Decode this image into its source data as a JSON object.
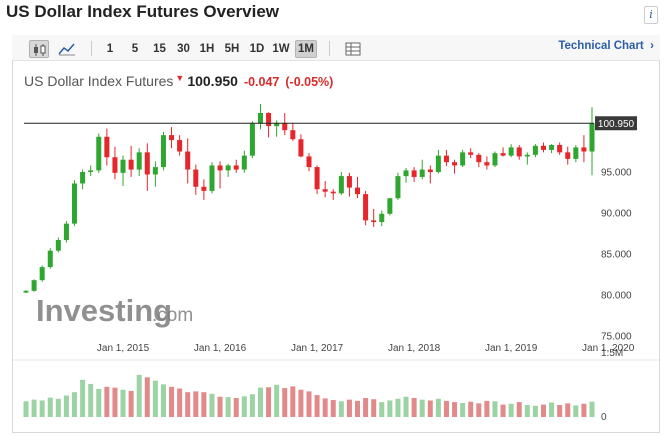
{
  "page": {
    "title": "US Dollar Index Futures Overview"
  },
  "toolbar": {
    "timeframes": [
      "1",
      "5",
      "15",
      "30",
      "1H",
      "5H",
      "1D",
      "1W",
      "1M"
    ],
    "active_timeframe": "1M",
    "technical_chart_label": "Technical Chart",
    "icons": [
      "candlestick-icon",
      "area-chart-icon",
      "table-icon"
    ]
  },
  "quote": {
    "name": "US Dollar Index Futures",
    "last": "100.950",
    "change": "-0.047",
    "change_pct": "(-0.05%)",
    "direction": "down"
  },
  "watermark": {
    "brand": "Investing",
    "suffix": ".com"
  },
  "colors": {
    "up": "#2fa62f",
    "down": "#e5262b",
    "volume_up": "#9cd3a5",
    "volume_down": "#e28a8a",
    "price_line": "#222222",
    "price_tag": "#3a3a3a"
  },
  "chart_data": {
    "type": "candlestick",
    "x_ticks": [
      "Jan 1, 2015",
      "Jan 1, 2016",
      "Jan 1, 2017",
      "Jan 1, 2018",
      "Jan 1, 2019",
      "Jan 1, 2020"
    ],
    "y_ticks": [
      "75.000",
      "80.000",
      "85.000",
      "90.000",
      "95.000"
    ],
    "price_tag": "100.950",
    "ylim": [
      74.5,
      103.3
    ],
    "volume_ticks": [
      "1.5M",
      "0"
    ],
    "volume_lim": [
      0,
      1500000
    ],
    "grid": false,
    "period": "monthly",
    "start": "2014-01",
    "candles": [
      [
        80.3,
        80.6,
        80.2,
        80.5
      ],
      [
        80.5,
        81.9,
        80.4,
        81.8
      ],
      [
        81.8,
        83.6,
        81.6,
        83.4
      ],
      [
        83.4,
        85.7,
        83.2,
        85.4
      ],
      [
        85.4,
        87.0,
        85.2,
        86.7
      ],
      [
        86.7,
        89.0,
        86.4,
        88.7
      ],
      [
        88.7,
        94.0,
        88.4,
        93.6
      ],
      [
        93.6,
        95.3,
        92.9,
        95.0
      ],
      [
        95.0,
        95.8,
        94.5,
        95.2
      ],
      [
        95.2,
        99.7,
        94.9,
        99.3
      ],
      [
        99.3,
        100.3,
        95.8,
        96.8
      ],
      [
        96.8,
        98.1,
        94.1,
        94.9
      ],
      [
        94.9,
        97.0,
        93.3,
        96.5
      ],
      [
        96.5,
        98.2,
        94.4,
        95.3
      ],
      [
        95.3,
        97.9,
        94.5,
        97.4
      ],
      [
        97.4,
        98.5,
        92.7,
        94.7
      ],
      [
        94.7,
        96.3,
        93.2,
        95.6
      ],
      [
        95.6,
        99.9,
        95.2,
        99.5
      ],
      [
        99.5,
        100.5,
        97.9,
        98.9
      ],
      [
        98.9,
        99.5,
        97.0,
        97.5
      ],
      [
        97.5,
        99.1,
        93.6,
        95.3
      ],
      [
        95.3,
        95.9,
        92.2,
        93.2
      ],
      [
        93.2,
        94.1,
        91.6,
        92.7
      ],
      [
        92.7,
        96.2,
        92.4,
        95.8
      ],
      [
        95.8,
        96.3,
        93.0,
        95.2
      ],
      [
        95.2,
        96.0,
        94.4,
        95.8
      ],
      [
        95.8,
        96.5,
        94.9,
        95.3
      ],
      [
        95.3,
        97.6,
        94.9,
        97.0
      ],
      [
        97.0,
        101.2,
        96.7,
        100.9
      ],
      [
        100.9,
        103.3,
        100.2,
        102.2
      ],
      [
        102.2,
        102.3,
        99.2,
        100.6
      ],
      [
        100.6,
        101.3,
        99.3,
        101.0
      ],
      [
        101.0,
        102.2,
        99.5,
        100.1
      ],
      [
        100.1,
        101.0,
        98.8,
        99.0
      ],
      [
        99.0,
        99.6,
        96.8,
        96.9
      ],
      [
        96.9,
        97.3,
        95.1,
        95.6
      ],
      [
        95.6,
        95.8,
        92.3,
        92.9
      ],
      [
        92.9,
        93.9,
        91.9,
        92.6
      ],
      [
        92.6,
        92.9,
        91.6,
        92.4
      ],
      [
        92.4,
        95.0,
        92.2,
        94.5
      ],
      [
        94.5,
        94.9,
        92.0,
        93.1
      ],
      [
        93.1,
        94.4,
        91.8,
        92.3
      ],
      [
        92.3,
        92.7,
        88.5,
        89.1
      ],
      [
        89.1,
        90.5,
        88.3,
        88.9
      ],
      [
        88.9,
        90.3,
        88.4,
        89.9
      ],
      [
        89.9,
        91.8,
        89.7,
        91.8
      ],
      [
        91.8,
        94.9,
        91.6,
        94.5
      ],
      [
        94.5,
        95.5,
        93.7,
        95.2
      ],
      [
        95.2,
        95.6,
        93.8,
        94.4
      ],
      [
        94.4,
        96.5,
        94.1,
        95.3
      ],
      [
        95.3,
        95.8,
        93.6,
        95.0
      ],
      [
        95.0,
        97.7,
        94.8,
        97.0
      ],
      [
        97.0,
        97.7,
        95.7,
        96.2
      ],
      [
        96.2,
        96.5,
        94.8,
        95.8
      ],
      [
        95.8,
        97.7,
        95.6,
        97.4
      ],
      [
        97.4,
        97.9,
        96.7,
        97.1
      ],
      [
        97.1,
        97.3,
        95.6,
        96.2
      ],
      [
        96.2,
        96.9,
        95.3,
        95.8
      ],
      [
        95.8,
        97.5,
        95.6,
        97.3
      ],
      [
        97.3,
        98.0,
        96.9,
        97.0
      ],
      [
        97.0,
        98.4,
        96.8,
        98.0
      ],
      [
        98.0,
        98.3,
        96.5,
        96.9
      ],
      [
        96.9,
        97.4,
        95.9,
        97.1
      ],
      [
        97.1,
        98.4,
        96.8,
        98.2
      ],
      [
        98.2,
        98.6,
        97.4,
        97.7
      ],
      [
        97.7,
        98.4,
        97.3,
        98.3
      ],
      [
        98.3,
        98.6,
        97.1,
        97.4
      ],
      [
        97.4,
        98.1,
        95.9,
        96.6
      ],
      [
        96.6,
        98.3,
        96.2,
        98.0
      ],
      [
        98.0,
        99.5,
        96.2,
        97.5
      ],
      [
        97.5,
        102.9,
        94.6,
        100.95
      ]
    ],
    "volumes": [
      0.38,
      0.42,
      0.4,
      0.47,
      0.44,
      0.52,
      0.6,
      0.9,
      0.8,
      0.68,
      0.73,
      0.71,
      0.66,
      0.63,
      1.02,
      0.96,
      0.88,
      0.79,
      0.73,
      0.69,
      0.6,
      0.62,
      0.6,
      0.56,
      0.49,
      0.48,
      0.46,
      0.5,
      0.55,
      0.71,
      0.72,
      0.78,
      0.7,
      0.74,
      0.66,
      0.62,
      0.53,
      0.45,
      0.41,
      0.38,
      0.42,
      0.39,
      0.46,
      0.43,
      0.36,
      0.4,
      0.44,
      0.49,
      0.46,
      0.42,
      0.4,
      0.44,
      0.39,
      0.36,
      0.34,
      0.37,
      0.33,
      0.39,
      0.38,
      0.3,
      0.32,
      0.36,
      0.29,
      0.27,
      0.3,
      0.35,
      0.29,
      0.33,
      0.28,
      0.32,
      0.37
    ]
  }
}
